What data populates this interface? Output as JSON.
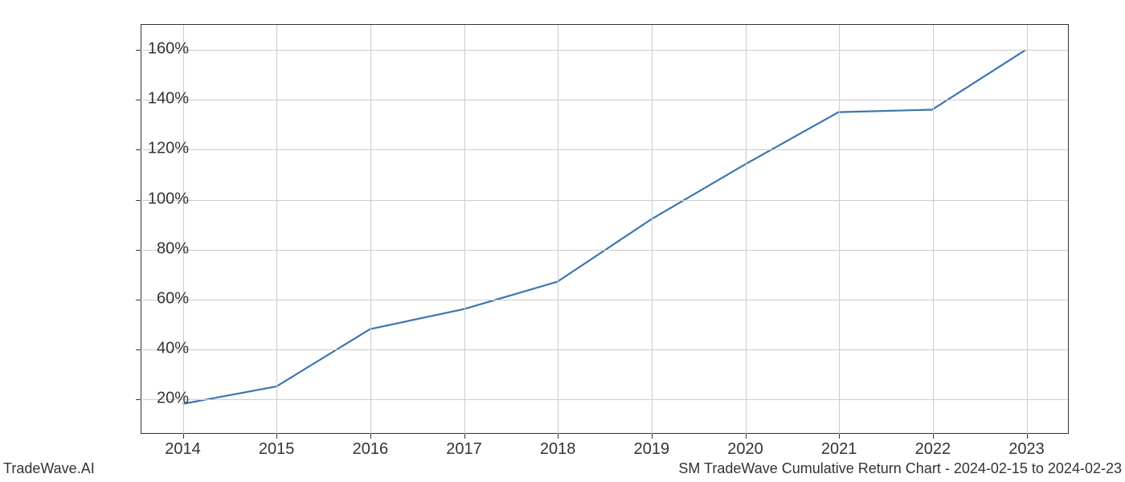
{
  "chart": {
    "type": "line",
    "x_values": [
      2014,
      2015,
      2016,
      2017,
      2018,
      2019,
      2020,
      2021,
      2022,
      2023
    ],
    "y_values": [
      18,
      25,
      48,
      56,
      67,
      92,
      114,
      135,
      136,
      160
    ],
    "x_ticks": [
      2014,
      2015,
      2016,
      2017,
      2018,
      2019,
      2020,
      2021,
      2022,
      2023
    ],
    "x_tick_labels": [
      "2014",
      "2015",
      "2016",
      "2017",
      "2018",
      "2019",
      "2020",
      "2021",
      "2022",
      "2023"
    ],
    "y_ticks": [
      20,
      40,
      60,
      80,
      100,
      120,
      140,
      160
    ],
    "y_tick_labels": [
      "20%",
      "40%",
      "60%",
      "80%",
      "100%",
      "120%",
      "140%",
      "160%"
    ],
    "xlim": [
      2013.55,
      2023.45
    ],
    "ylim": [
      6,
      170
    ],
    "line_color": "#3a76af",
    "line_width": 2.2,
    "grid_color": "#cccccc",
    "background_color": "#ffffff",
    "axis_color": "#333333",
    "tick_fontsize": 20,
    "footer_fontsize": 18
  },
  "footer": {
    "left": "TradeWave.AI",
    "right": "SM TradeWave Cumulative Return Chart - 2024-02-15 to 2024-02-23"
  }
}
